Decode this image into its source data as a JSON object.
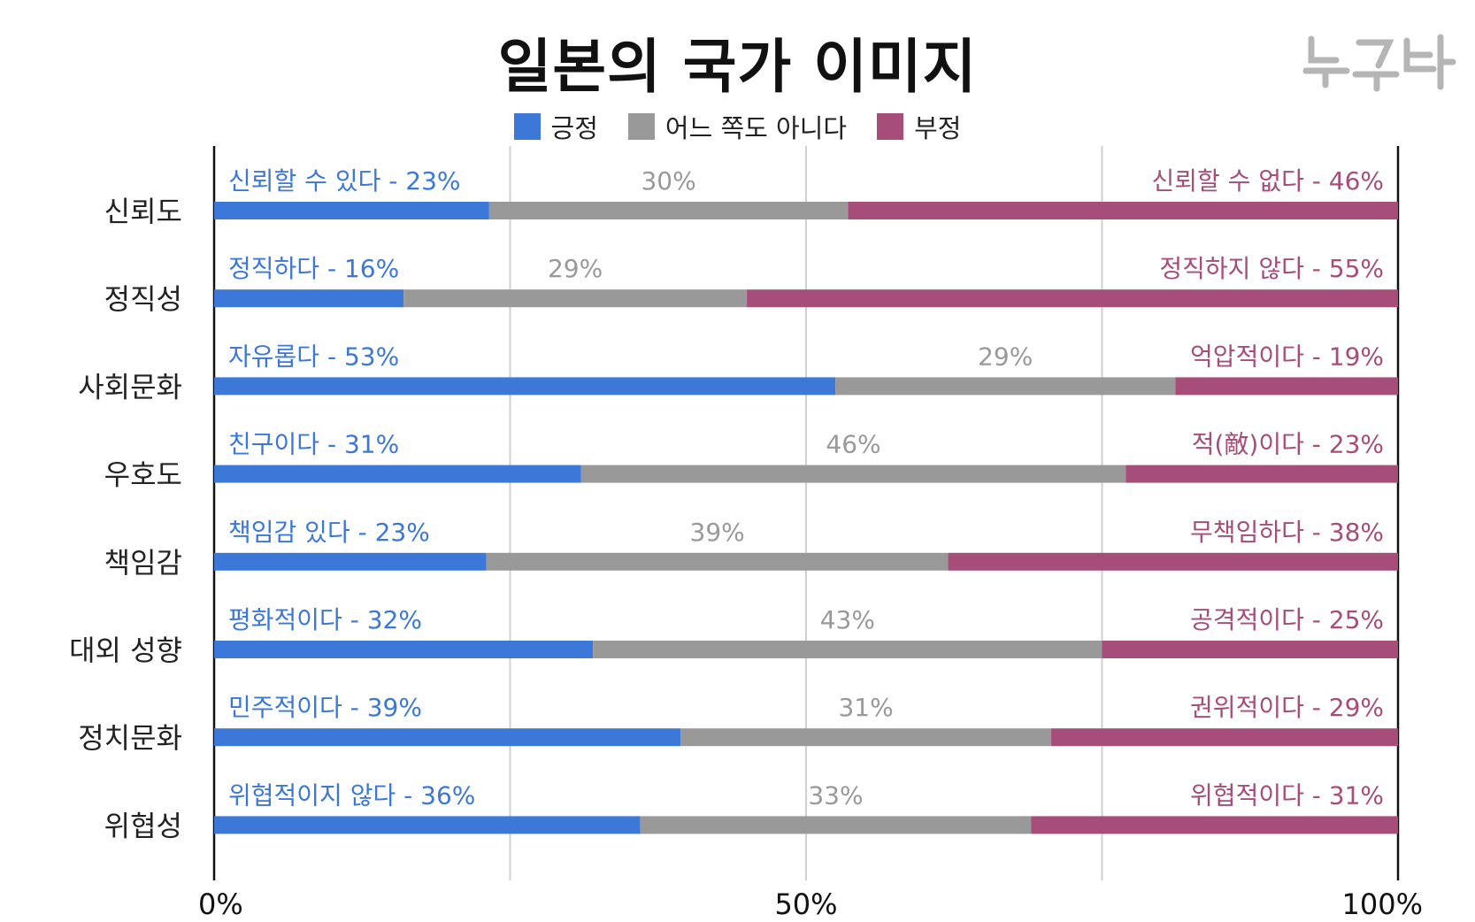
{
  "title": "일본의 국가 이미지",
  "logo_text": "뉴스타파",
  "colors": {
    "positive": "#3b78d8",
    "neutral": "#999999",
    "negative": "#a64d79"
  },
  "chart_data": {
    "type": "bar",
    "stacked": true,
    "orientation": "horizontal",
    "categories": [
      "신뢰도",
      "정직성",
      "사회문화",
      "우호도",
      "책임감",
      "대외 성향",
      "정치문화",
      "위협성"
    ],
    "series": [
      {
        "name": "긍정",
        "values": [
          23,
          16,
          53,
          31,
          23,
          32,
          39,
          36
        ]
      },
      {
        "name": "어느 쪽도 아니다",
        "values": [
          30,
          29,
          29,
          46,
          39,
          43,
          31,
          33
        ]
      },
      {
        "name": "부정",
        "values": [
          46,
          55,
          19,
          23,
          38,
          25,
          29,
          31
        ]
      }
    ],
    "labels_positive": [
      "신뢰할 수 있다 - 23%",
      "정직하다 - 16%",
      "자유롭다 - 53%",
      "친구이다 - 31%",
      "책임감 있다 - 23%",
      "평화적이다 - 32%",
      "민주적이다 - 39%",
      "위협적이지 않다 - 36%"
    ],
    "labels_neutral": [
      "30%",
      "29%",
      "29%",
      "46%",
      "39%",
      "43%",
      "31%",
      "33%"
    ],
    "labels_negative": [
      "신뢰할 수 없다 - 46%",
      "정직하지 않다 - 55%",
      "억압적이다 - 19%",
      "적(敵)이다 - 23%",
      "무책임하다 - 38%",
      "공격적이다 - 25%",
      "권위적이다 - 29%",
      "위협적이다 - 31%"
    ],
    "x_ticks": [
      "0%",
      "50%",
      "100%"
    ],
    "xlim": [
      0,
      100
    ],
    "grid": true,
    "legend_position": "top-center"
  }
}
